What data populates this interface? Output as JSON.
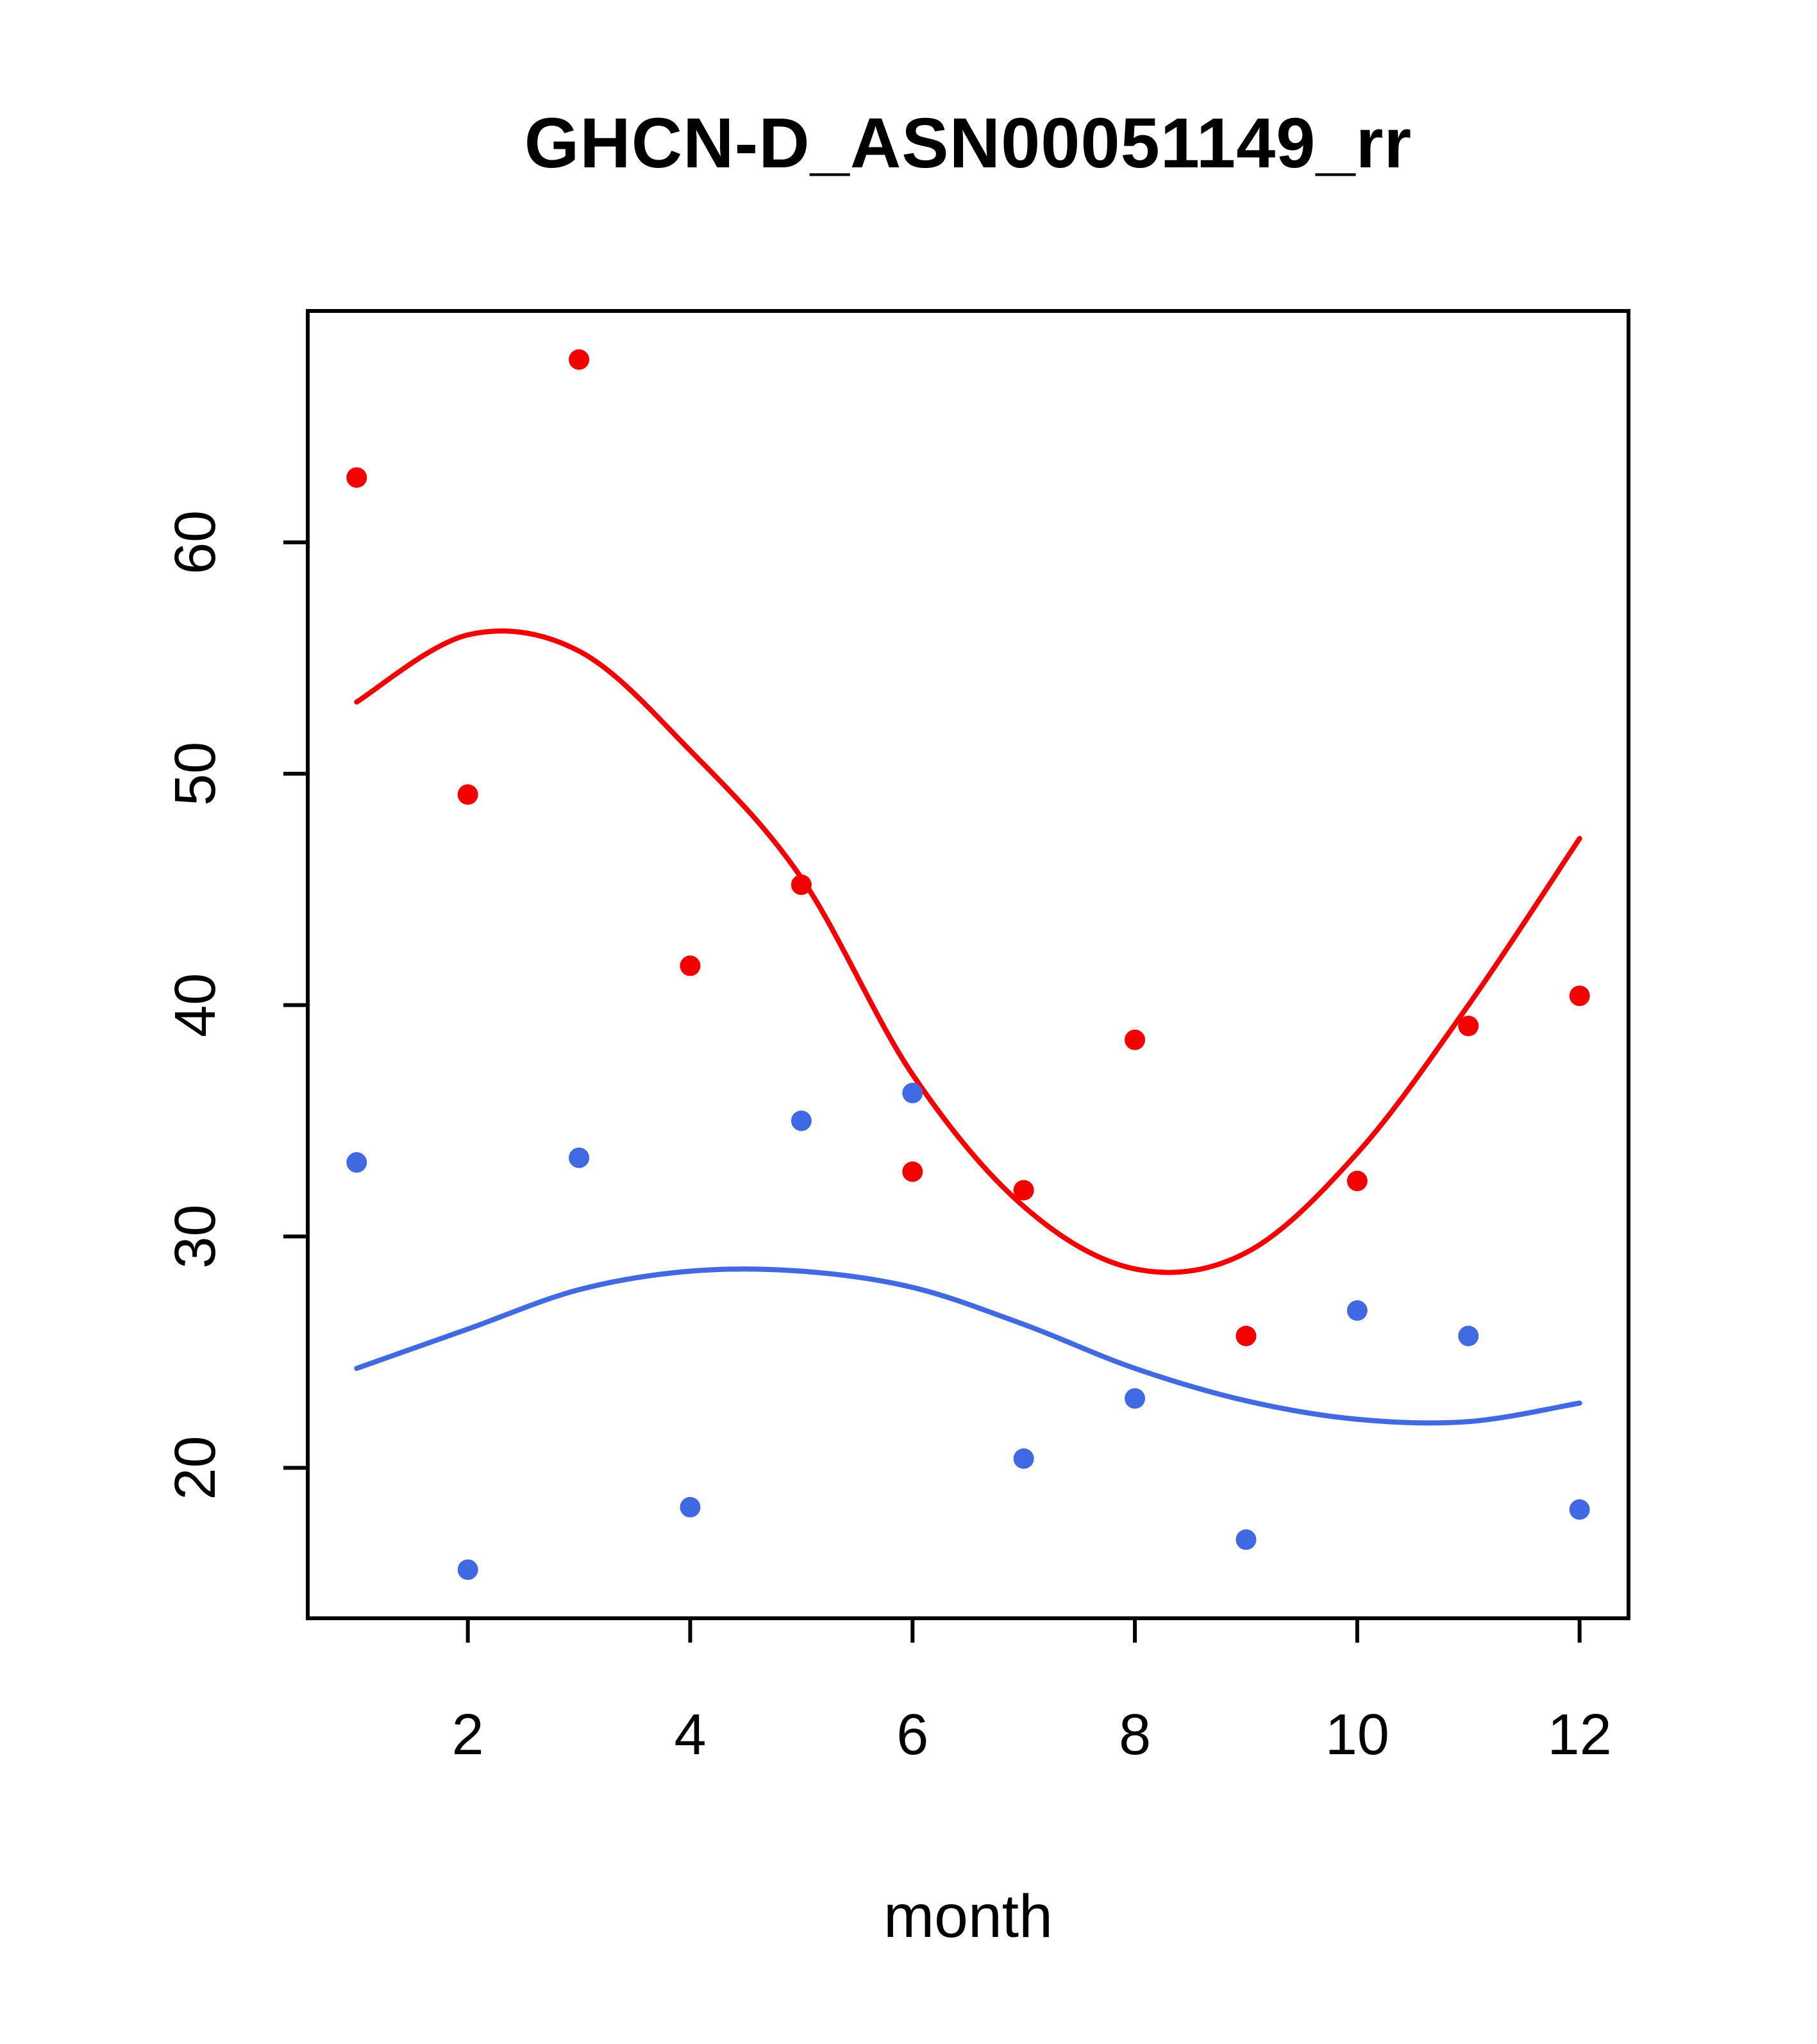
{
  "title": "GHCN-D_ASN00051149_rr",
  "colors": {
    "red_series": "#f40000",
    "blue_series": "#4169e1",
    "axis": "#000000",
    "background": "#ffffff"
  },
  "chart_data": {
    "type": "scatter",
    "title": "GHCN-D_ASN00051149_rr",
    "xlabel": "month",
    "ylabel": "",
    "x": [
      1,
      2,
      3,
      4,
      5,
      6,
      7,
      8,
      9,
      10,
      11,
      12
    ],
    "xlim": [
      0.56,
      12.44
    ],
    "ylim": [
      13.5,
      70.0
    ],
    "x_ticks": [
      2,
      4,
      6,
      8,
      10,
      12
    ],
    "y_ticks": [
      20,
      30,
      40,
      50,
      60
    ],
    "grid": false,
    "legend_position": "none",
    "series": [
      {
        "name": "red-points",
        "style": "points",
        "color": "#f40000",
        "values": [
          62.8,
          49.1,
          67.9,
          41.7,
          45.2,
          32.8,
          32.0,
          38.5,
          25.7,
          32.4,
          39.1,
          40.4
        ]
      },
      {
        "name": "blue-points",
        "style": "points",
        "color": "#4169e1",
        "values": [
          33.2,
          15.6,
          33.4,
          18.3,
          35.0,
          36.2,
          20.4,
          23.0,
          16.9,
          26.8,
          25.7,
          18.2
        ]
      },
      {
        "name": "red-smooth-line",
        "style": "line",
        "color": "#f40000",
        "values": [
          53.1,
          56.0,
          55.3,
          51.0,
          45.5,
          37.0,
          31.3,
          28.6,
          29.3,
          33.6,
          40.0,
          47.2
        ]
      },
      {
        "name": "blue-smooth-line",
        "style": "line",
        "color": "#4169e1",
        "values": [
          24.3,
          26.0,
          27.7,
          28.5,
          28.5,
          27.8,
          26.2,
          24.3,
          22.9,
          22.1,
          22.0,
          22.8
        ]
      }
    ]
  }
}
